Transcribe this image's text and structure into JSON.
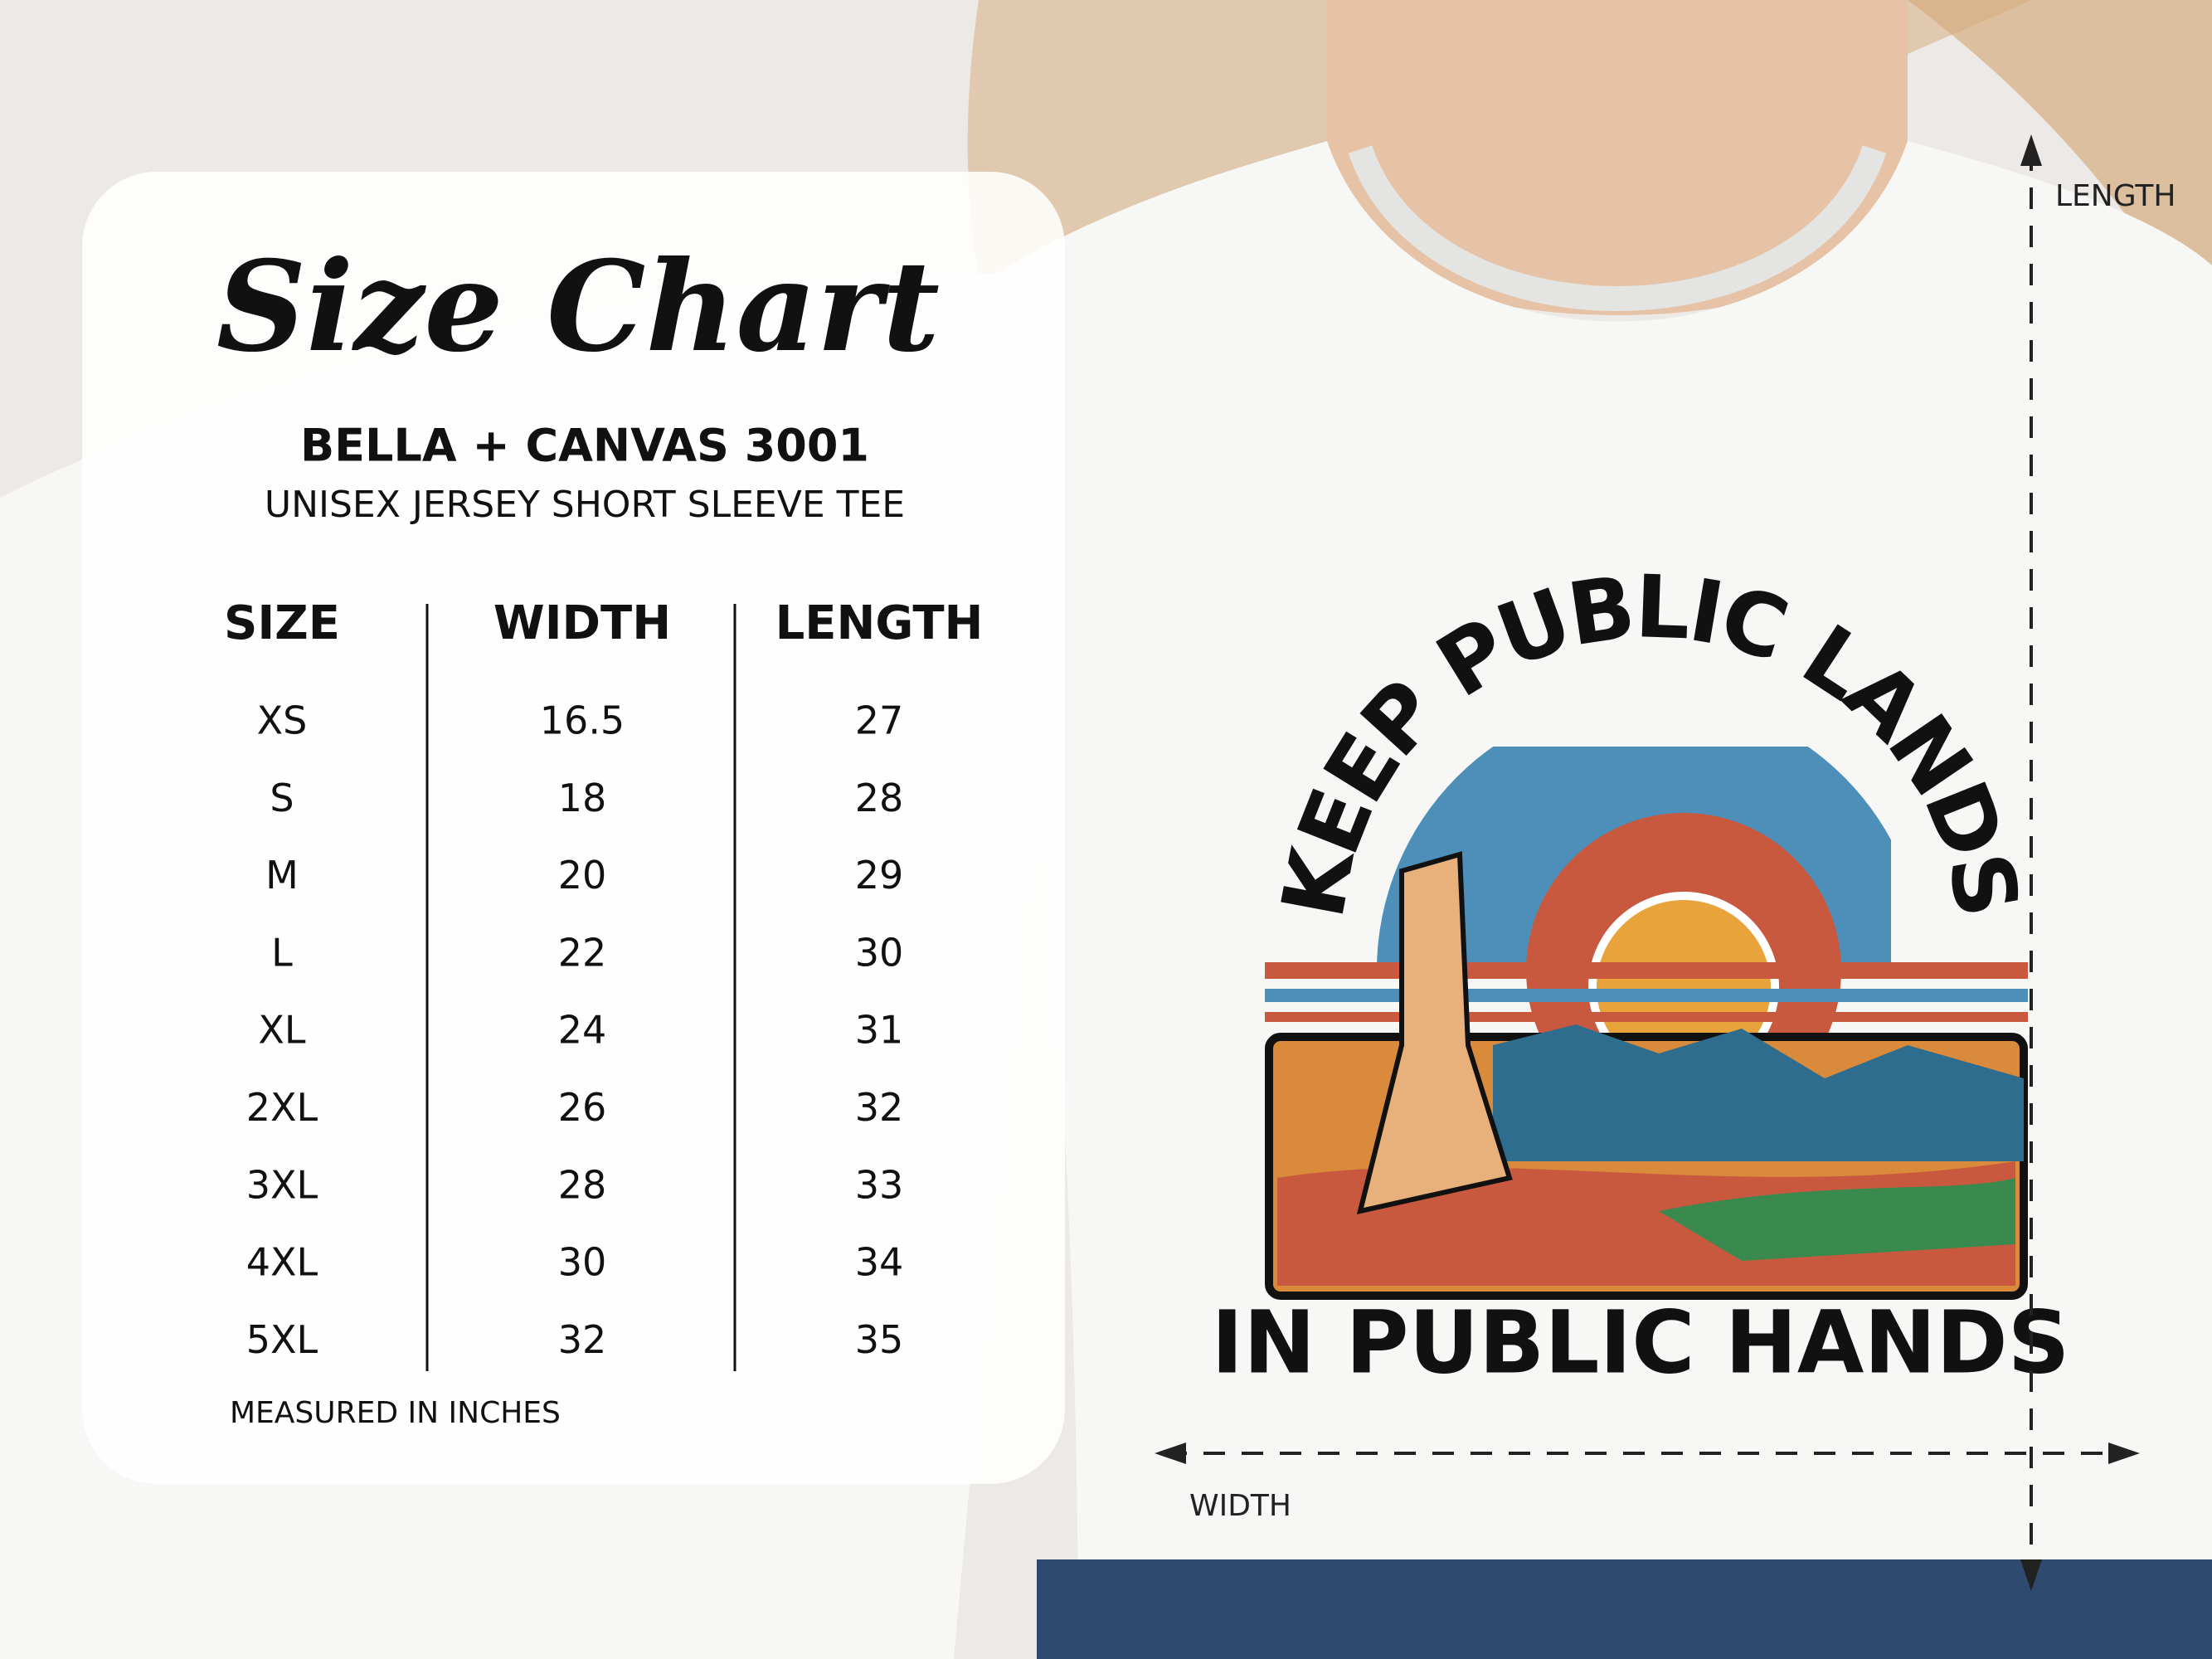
{
  "header": {
    "title": "Size Chart",
    "brand": "BELLA + CANVAS 3001",
    "product": "UNISEX JERSEY SHORT SLEEVE TEE"
  },
  "table": {
    "columns": [
      "SIZE",
      "WIDTH",
      "LENGTH"
    ],
    "rows": [
      [
        "XS",
        16.5,
        27
      ],
      [
        "S",
        18,
        28
      ],
      [
        "M",
        20,
        29
      ],
      [
        "L",
        22,
        30
      ],
      [
        "XL",
        24,
        31
      ],
      [
        "2XL",
        26,
        32
      ],
      [
        "3XL",
        28,
        33
      ],
      [
        "4XL",
        30,
        34
      ],
      [
        "5XL",
        32,
        35
      ]
    ]
  },
  "footnote": "MEASURED IN INCHES",
  "shirt_print": {
    "top": "KEEP PUBLIC LANDS",
    "bottom": "IN PUBLIC HANDS"
  },
  "measurements": {
    "length": "LENGTH",
    "width": "WIDTH"
  }
}
